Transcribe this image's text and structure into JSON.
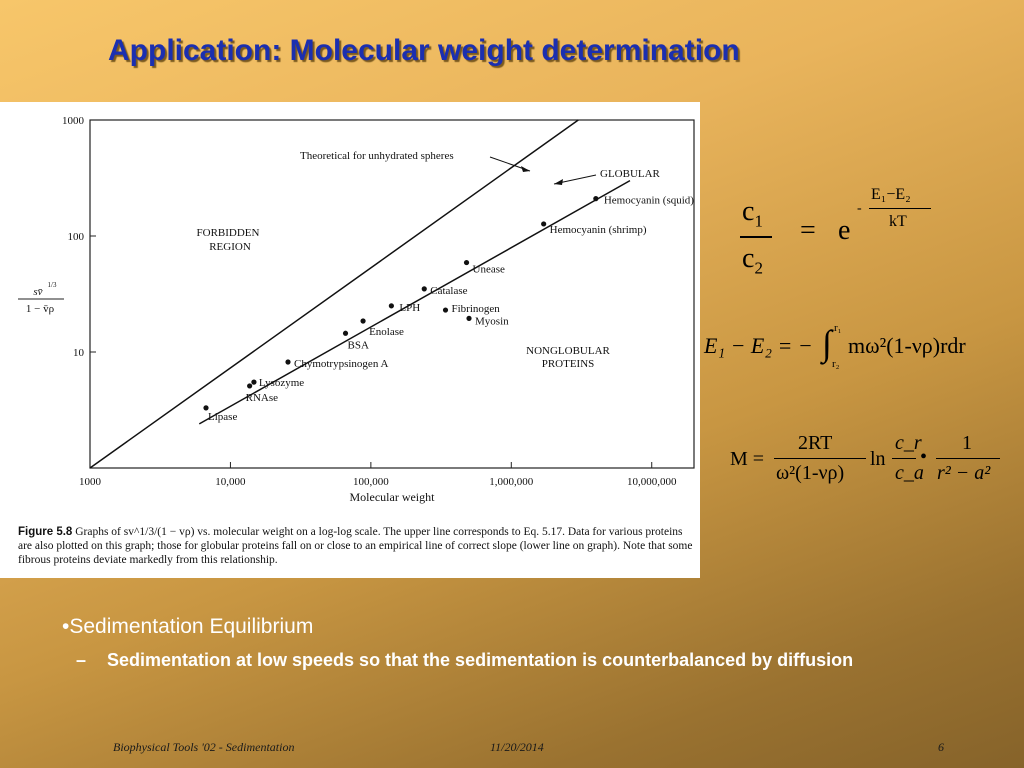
{
  "slide": {
    "title": "Application:  Molecular weight determination",
    "bullet_main": "•Sedimentation Equilibrium",
    "bullet_sub_marker": "–",
    "bullet_sub": "Sedimentation at low speeds so that the sedimentation is counterbalanced by diffusion",
    "footer_left": "Biophysical Tools '02 - Sedimentation",
    "footer_center": "11/20/2014",
    "footer_right": "6"
  },
  "figure": {
    "caption_label": "Figure 5.8",
    "caption_text": "Graphs of sv^1/3/(1 − vρ) vs. molecular weight on a log-log scale. The upper line corresponds to Eq. 5.17. Data for various proteins are also plotted on this graph; those for globular proteins fall on or close to an empirical line of correct slope (lower line on graph). Note that some fibrous proteins deviate markedly from this relationship."
  },
  "chart_data": {
    "type": "scatter",
    "xscale": "log",
    "yscale": "log",
    "xlabel": "Molecular weight",
    "ylabel": "sv̄^1/3 / (1 − v̄ρ)",
    "xlim": [
      1000,
      20000000
    ],
    "ylim": [
      1,
      1000
    ],
    "x_ticks": [
      1000,
      10000,
      100000,
      1000000,
      10000000
    ],
    "x_tick_labels": [
      "1000",
      "10,000",
      "100,000",
      "1,000,000",
      "10,000,000"
    ],
    "y_ticks": [
      10,
      100,
      1000
    ],
    "y_tick_labels": [
      "10",
      "100",
      "1000"
    ],
    "lines": [
      {
        "name": "Theoretical for unhydrated spheres",
        "x": [
          1000,
          3000000
        ],
        "y": [
          1.0,
          1000
        ]
      },
      {
        "name": "GLOBULAR",
        "x": [
          6000,
          7000000
        ],
        "y": [
          2.4,
          300
        ]
      }
    ],
    "points": [
      {
        "label": "Lipase",
        "x": 6700,
        "y": 3.3
      },
      {
        "label": "RNAse",
        "x": 13700,
        "y": 5.1
      },
      {
        "label": "Lysozyme",
        "x": 14700,
        "y": 5.5
      },
      {
        "label": "Chymotrypsinogen A",
        "x": 25700,
        "y": 8.2
      },
      {
        "label": "BSA",
        "x": 66000,
        "y": 14.5
      },
      {
        "label": "Enolase",
        "x": 88000,
        "y": 18.5
      },
      {
        "label": "LPH",
        "x": 140000,
        "y": 25
      },
      {
        "label": "Catalase",
        "x": 240000,
        "y": 35
      },
      {
        "label": "Fibrinogen",
        "x": 340000,
        "y": 23
      },
      {
        "label": "Myosin",
        "x": 500000,
        "y": 19.5
      },
      {
        "label": "Unease",
        "x": 480000,
        "y": 59
      },
      {
        "label": "Hemocyanin (shrimp)",
        "x": 1700000,
        "y": 127
      },
      {
        "label": "Hemocyanin (squid)",
        "x": 4000000,
        "y": 210
      }
    ],
    "annotations": [
      "Theoretical for unhydrated spheres",
      "GLOBULAR",
      "FORBIDDEN",
      "REGION",
      "NONGLOBULAR",
      "PROTEINS"
    ]
  },
  "equations": {
    "eq1": {
      "c1": "c",
      "s1": "1",
      "c2": "c",
      "s2": "2",
      "equals": "=",
      "e": "e",
      "minus": "-",
      "num": "E₁−E₂",
      "den": "kT"
    },
    "eq2": {
      "lhs": "E₁ − E₂ = −",
      "int_top": "r₁",
      "int_bot": "r₂",
      "rhs": "mω²(1-νρ)rdr"
    },
    "eq3": {
      "lhs": "M =",
      "n1": "2RT",
      "d1": "ω²(1-νρ)",
      "ln": "ln",
      "n2": "c_r",
      "d2": "c_a",
      "dot": "•",
      "n3": "1",
      "d3": "r² − a²"
    }
  }
}
